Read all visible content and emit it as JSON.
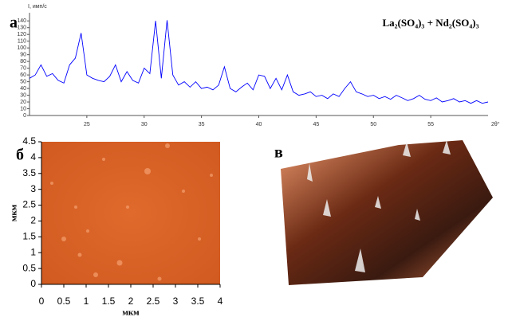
{
  "chart_data": [
    {
      "type": "line",
      "label": "а",
      "title": "La₂(SO₄)₃ + Nd₂(SO₄)₃",
      "xlabel": "2θ°",
      "ylabel": "I, имп/с",
      "x": [
        20,
        20.5,
        21,
        21.5,
        22,
        22.5,
        23,
        23.5,
        24,
        24.5,
        25,
        25.5,
        26,
        26.5,
        27,
        27.5,
        28,
        28.5,
        29,
        29.5,
        30,
        30.5,
        31,
        31.5,
        32,
        32.5,
        33,
        33.5,
        34,
        34.5,
        35,
        35.5,
        36,
        36.5,
        37,
        37.5,
        38,
        38.5,
        39,
        39.5,
        40,
        40.5,
        41,
        41.5,
        42,
        42.5,
        43,
        43.5,
        44,
        44.5,
        45,
        45.5,
        46,
        46.5,
        47,
        47.5,
        48,
        48.5,
        49,
        49.5,
        50,
        50.5,
        51,
        51.5,
        52,
        52.5,
        53,
        53.5,
        54,
        54.5,
        55,
        55.5,
        56,
        56.5,
        57,
        57.5,
        58,
        58.5,
        59,
        59.5,
        60
      ],
      "series": [
        {
          "color": "#0000ff",
          "values": [
            55,
            60,
            75,
            58,
            62,
            52,
            48,
            75,
            85,
            122,
            60,
            55,
            52,
            50,
            58,
            75,
            50,
            65,
            52,
            48,
            70,
            62,
            140,
            55,
            141,
            60,
            45,
            50,
            42,
            50,
            40,
            42,
            38,
            45,
            72,
            40,
            35,
            42,
            48,
            38,
            60,
            58,
            40,
            55,
            38,
            60,
            35,
            30,
            32,
            35,
            28,
            30,
            25,
            32,
            28,
            40,
            50,
            35,
            32,
            28,
            30,
            25,
            28,
            24,
            30,
            26,
            22,
            25,
            30,
            24,
            22,
            26,
            20,
            22,
            25,
            20,
            22,
            18,
            22,
            18,
            20
          ]
        }
      ],
      "xlim": [
        20,
        60
      ],
      "xticks": [
        25,
        30,
        35,
        40,
        45,
        50,
        55
      ],
      "ylim": [
        0,
        145
      ],
      "yticks": [
        0,
        10,
        20,
        30,
        40,
        50,
        60,
        70,
        80,
        90,
        100,
        110,
        120,
        130,
        140
      ]
    },
    {
      "type": "image",
      "label": "б",
      "xlabel": "мкм",
      "ylabel": "мкм",
      "xlim": [
        0,
        4
      ],
      "xticks": [
        0,
        0.5,
        1,
        1.5,
        2,
        2.5,
        3,
        3.5,
        4
      ],
      "ylim": [
        0,
        4.5
      ],
      "yticks": [
        0,
        0.5,
        1,
        1.5,
        2,
        2.5,
        3,
        3.5,
        4,
        4.5
      ]
    },
    {
      "type": "image",
      "label": "в"
    }
  ]
}
